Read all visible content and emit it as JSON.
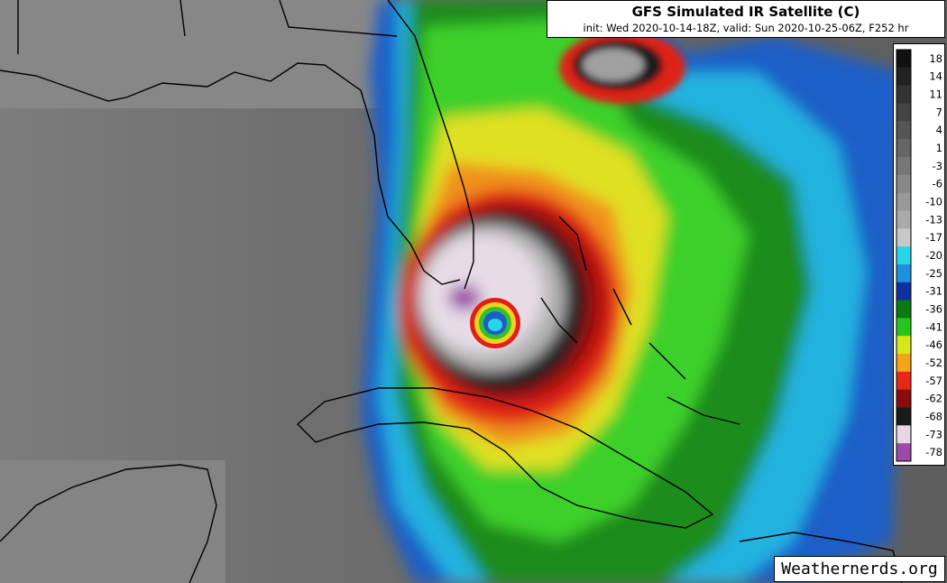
{
  "header": {
    "title": "GFS Simulated IR Satellite (C)",
    "subtitle": "init: Wed 2020-10-14-18Z, valid: Sun 2020-10-25-06Z, F252 hr"
  },
  "legend": {
    "ticks": [
      "18",
      "14",
      "11",
      "7",
      "4",
      "1",
      "-3",
      "-6",
      "-10",
      "-13",
      "-17",
      "-20",
      "-25",
      "-31",
      "-36",
      "-41",
      "-46",
      "-52",
      "-57",
      "-62",
      "-68",
      "-73",
      "-78"
    ],
    "colors": [
      "#111111",
      "#222222",
      "#333333",
      "#444444",
      "#555555",
      "#666666",
      "#777777",
      "#888888",
      "#999999",
      "#aaaaaa",
      "#c8c8c8",
      "#2ad4e6",
      "#1f8fe0",
      "#1030a0",
      "#0a7a12",
      "#26c61e",
      "#d6e81a",
      "#f3a51a",
      "#e8261a",
      "#8a0c0c",
      "#1a1a1a",
      "#e6d6e6",
      "#9a4aa8"
    ]
  },
  "credit": {
    "text": "Weathernerds.org"
  },
  "colors": {
    "land": "#767676",
    "ocean": "#5c5c5c",
    "coast": "#000000"
  }
}
